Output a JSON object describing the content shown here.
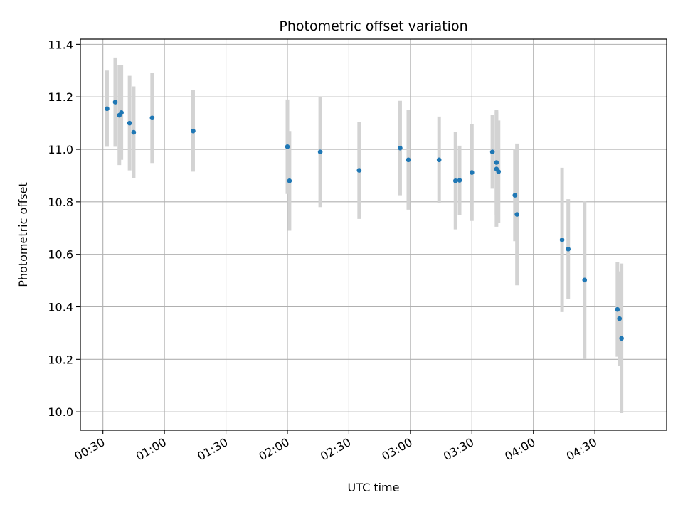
{
  "chart_data": {
    "type": "scatter",
    "title": "Photometric offset variation",
    "xlabel": "UTC time",
    "ylabel": "Photometric offset",
    "x_ticks": [
      "00:30",
      "01:00",
      "01:30",
      "02:00",
      "02:30",
      "03:00",
      "03:30",
      "04:00",
      "04:30"
    ],
    "y_ticks": [
      "10.0",
      "10.2",
      "10.4",
      "10.6",
      "10.8",
      "11.0",
      "11.2",
      "11.4"
    ],
    "xlim": [
      "00:19",
      "05:05"
    ],
    "ylim": [
      9.93,
      11.42
    ],
    "grid": true,
    "point_color": "#1f77b4",
    "errorbar_color": "#d3d3d3",
    "points": [
      {
        "time": "00:32",
        "y": 11.155,
        "err": 0.145
      },
      {
        "time": "00:36",
        "y": 11.18,
        "err": 0.17
      },
      {
        "time": "00:38",
        "y": 11.13,
        "err": 0.19
      },
      {
        "time": "00:39",
        "y": 11.14,
        "err": 0.18
      },
      {
        "time": "00:43",
        "y": 11.1,
        "err": 0.18
      },
      {
        "time": "00:45",
        "y": 11.065,
        "err": 0.175
      },
      {
        "time": "00:54",
        "y": 11.12,
        "err": 0.172
      },
      {
        "time": "01:14",
        "y": 11.07,
        "err": 0.155
      },
      {
        "time": "02:00",
        "y": 11.01,
        "err": 0.18
      },
      {
        "time": "02:01",
        "y": 10.88,
        "err": 0.19
      },
      {
        "time": "02:16",
        "y": 10.99,
        "err": 0.21
      },
      {
        "time": "02:35",
        "y": 10.92,
        "err": 0.185
      },
      {
        "time": "02:55",
        "y": 11.005,
        "err": 0.18
      },
      {
        "time": "02:59",
        "y": 10.96,
        "err": 0.19
      },
      {
        "time": "03:14",
        "y": 10.96,
        "err": 0.165
      },
      {
        "time": "03:22",
        "y": 10.88,
        "err": 0.185
      },
      {
        "time": "03:24",
        "y": 10.882,
        "err": 0.132
      },
      {
        "time": "03:30",
        "y": 10.912,
        "err": 0.185
      },
      {
        "time": "03:40",
        "y": 10.99,
        "err": 0.14
      },
      {
        "time": "03:42",
        "y": 10.95,
        "err": 0.2
      },
      {
        "time": "03:42",
        "y": 10.925,
        "err": 0.22
      },
      {
        "time": "03:43",
        "y": 10.915,
        "err": 0.195
      },
      {
        "time": "03:51",
        "y": 10.825,
        "err": 0.175
      },
      {
        "time": "03:52",
        "y": 10.752,
        "err": 0.27
      },
      {
        "time": "04:14",
        "y": 10.655,
        "err": 0.275
      },
      {
        "time": "04:17",
        "y": 10.62,
        "err": 0.19
      },
      {
        "time": "04:25",
        "y": 10.502,
        "err": 0.3
      },
      {
        "time": "04:41",
        "y": 10.39,
        "err": 0.18
      },
      {
        "time": "04:42",
        "y": 10.355,
        "err": 0.18
      },
      {
        "time": "04:43",
        "y": 10.28,
        "err": 0.285
      }
    ]
  }
}
